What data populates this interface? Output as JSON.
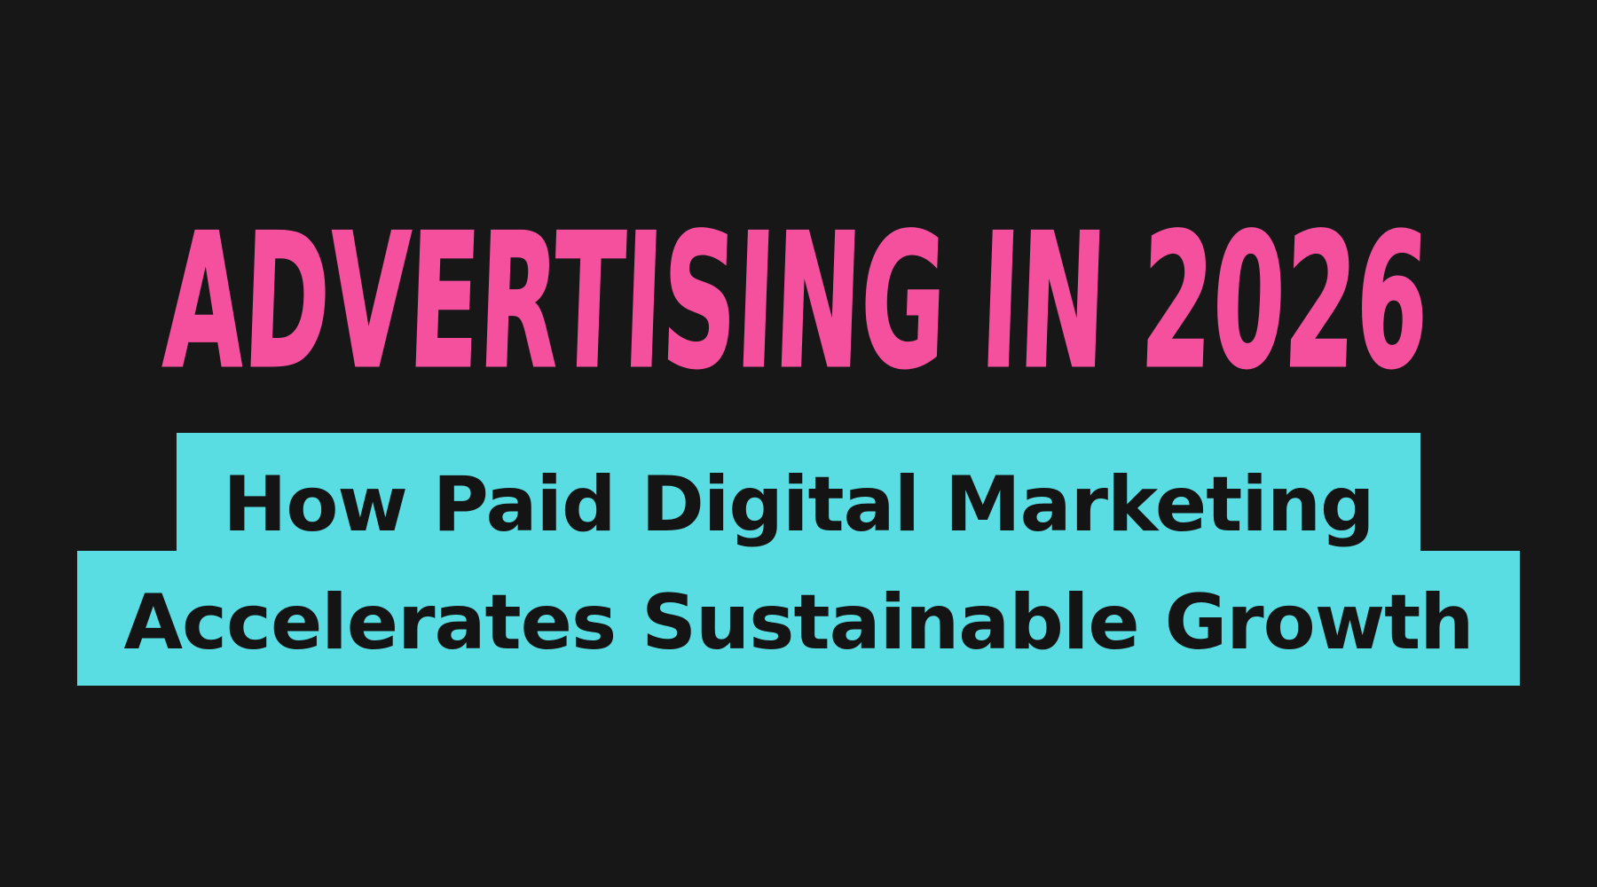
{
  "colors": {
    "bg": "#171717",
    "pink": "#f4509e",
    "cyan": "#59dde2",
    "ink": "#141414"
  },
  "title": {
    "text": "ADVERTISING IN 2026"
  },
  "subtitle": {
    "line1": "How Paid Digital Marketing",
    "line2": "Accelerates Sustainable Growth"
  }
}
